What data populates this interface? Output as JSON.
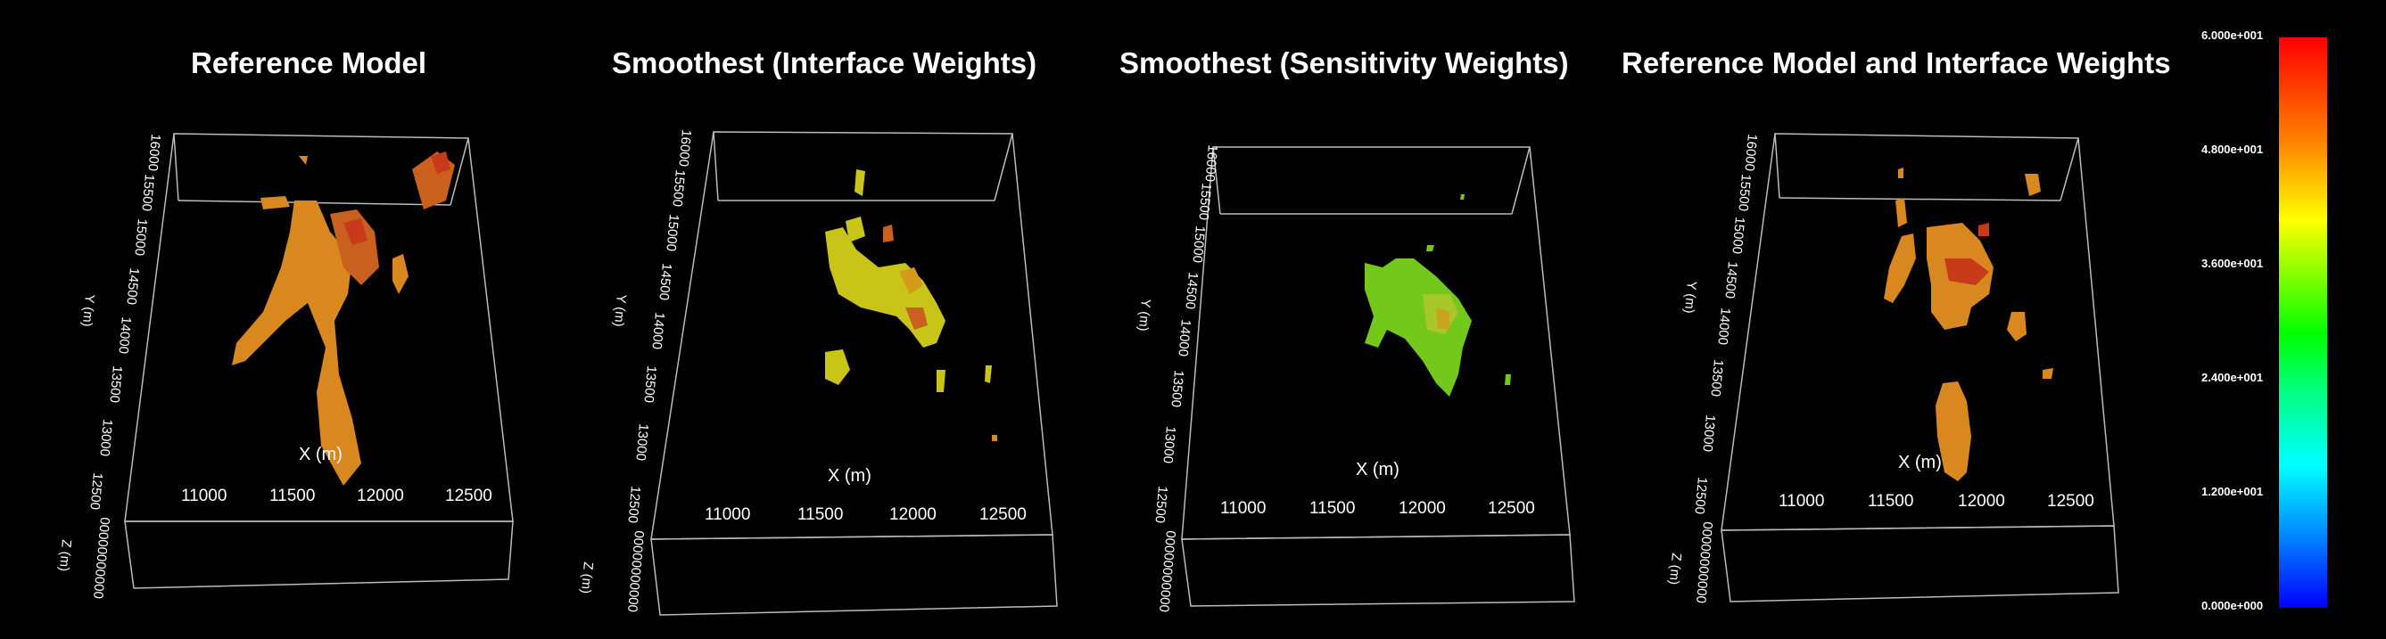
{
  "panels": [
    {
      "title": "Reference Model"
    },
    {
      "title": "Smoothest (Interface Weights)"
    },
    {
      "title": "Smoothest (Sensitivity Weights)"
    },
    {
      "title": "Reference Model and Interface Weights"
    }
  ],
  "axis": {
    "x_label": "X (m)",
    "y_label": "Y (m)",
    "z_label": "Z (m)",
    "x_ticks": [
      "11000",
      "11500",
      "12000",
      "12500"
    ],
    "y_ticks": [
      "12500",
      "13000",
      "13500",
      "14000",
      "14500",
      "15000",
      "15500",
      "16000"
    ],
    "z_ticks": "00000000000"
  },
  "colorbar": {
    "labels": [
      "6.000e+001",
      "4.800e+001",
      "3.600e+001",
      "2.400e+001",
      "1.200e+001",
      "0.000e+000"
    ],
    "colors": [
      "#ff0000",
      "#ffff00",
      "#00ff00",
      "#00ffff",
      "#0000ff"
    ]
  },
  "blob_colors": {
    "orange": "#d9871f",
    "red": "#c83a1a",
    "yellow": "#c9c418",
    "green": "#74c81c"
  }
}
